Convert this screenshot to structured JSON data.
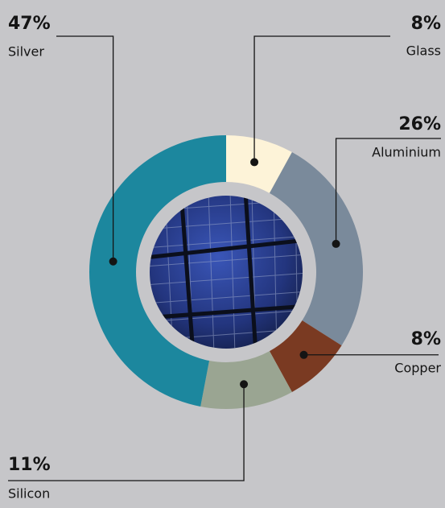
{
  "chart_data": {
    "type": "pie",
    "donut": true,
    "categories": [
      "Glass",
      "Aluminium",
      "Copper",
      "Silicon",
      "Silver"
    ],
    "values": [
      8,
      26,
      8,
      11,
      47
    ],
    "value_labels": [
      "8%",
      "26%",
      "8%",
      "11%",
      "47%"
    ],
    "colors": [
      "#fdf3d8",
      "#7a8a9b",
      "#7a3a22",
      "#9aa592",
      "#1c879e"
    ]
  }
}
